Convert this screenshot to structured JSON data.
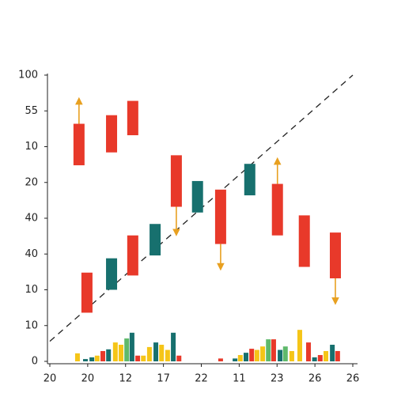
{
  "chart_data": {
    "type": "candlestick",
    "xlim": [
      0,
      8
    ],
    "xticks": [
      {
        "value": 0,
        "label": "20"
      },
      {
        "value": 1,
        "label": "20"
      },
      {
        "value": 2,
        "label": "12"
      },
      {
        "value": 3,
        "label": "17"
      },
      {
        "value": 4,
        "label": "22"
      },
      {
        "value": 5,
        "label": "11"
      },
      {
        "value": 6,
        "label": "23"
      },
      {
        "value": 7,
        "label": "26"
      },
      {
        "value": 8,
        "label": "26"
      }
    ],
    "ylim": [
      0,
      100
    ],
    "yticks": [
      0,
      {
        "value": 12.5,
        "label": "10"
      },
      {
        "value": 25,
        "label": "10"
      },
      {
        "value": 37.5,
        "label": "40"
      },
      {
        "value": 50,
        "label": "40"
      },
      {
        "value": 62.5,
        "label": "20"
      },
      {
        "value": 75,
        "label": "10"
      },
      {
        "value": 87.5,
        "label": "55"
      },
      100
    ],
    "boxes": {
      "x": [
        0.77,
        1.63,
        2.19,
        3.34,
        3.9,
        4.51,
        5.28,
        6.01,
        6.72,
        7.54,
        0.98,
        1.63,
        2.19,
        2.78
      ],
      "high": [
        83,
        86,
        91,
        72,
        63,
        60,
        69,
        62,
        51,
        45,
        31,
        36,
        44,
        48
      ],
      "low": [
        68.5,
        73,
        79,
        54,
        52,
        41,
        58,
        44,
        33,
        29,
        17,
        25,
        30,
        37
      ],
      "color": [
        "#e8392a",
        "#e8392a",
        "#e8392a",
        "#e8392a",
        "#17706e",
        "#e8392a",
        "#17706e",
        "#e8392a",
        "#e8392a",
        "#e8392a",
        "#e8392a",
        "#17706e",
        "#e8392a",
        "#17706e"
      ]
    },
    "arrows": {
      "color": "#e8a020",
      "x": [
        0.77,
        3.34,
        4.51,
        6.01,
        7.54
      ],
      "from": [
        83,
        54,
        41,
        62,
        29
      ],
      "to": [
        91,
        45,
        33,
        70,
        21
      ]
    },
    "trend": {
      "x": [
        0,
        8
      ],
      "y": [
        7,
        100
      ],
      "color": "#222"
    },
    "volume": {
      "x": [
        0.73,
        0.94,
        1.11,
        1.25,
        1.4,
        1.55,
        1.73,
        1.88,
        2.03,
        2.17,
        2.32,
        2.47,
        2.63,
        2.8,
        2.95,
        3.11,
        3.26,
        3.41,
        4.51,
        4.89,
        5.03,
        5.18,
        5.33,
        5.47,
        5.62,
        5.77,
        5.91,
        6.08,
        6.22,
        6.39,
        6.6,
        6.83,
        6.99,
        7.14,
        7.29,
        7.46,
        7.6
      ],
      "values": [
        2.8,
        0.8,
        1.4,
        2,
        3.6,
        4.2,
        6.6,
        5.8,
        8,
        10,
        2,
        2,
        5,
        6.6,
        5.8,
        4,
        10,
        2,
        1,
        1,
        2.2,
        3,
        4.4,
        4,
        5.2,
        7.7,
        7.7,
        4,
        5.2,
        3.6,
        11,
        6.6,
        1.4,
        2.2,
        3.6,
        5.8,
        3.6
      ],
      "color": [
        "#f5c518",
        "#17706e",
        "#17706e",
        "#f5c518",
        "#e8392a",
        "#17706e",
        "#f5c518",
        "#f5c518",
        "#5fb96b",
        "#17706e",
        "#e8392a",
        "#f5c518",
        "#f5c518",
        "#17706e",
        "#f5c518",
        "#f5c518",
        "#17706e",
        "#e8392a",
        "#e8392a",
        "#17706e",
        "#f5c518",
        "#17706e",
        "#e8392a",
        "#f5c518",
        "#f5c518",
        "#5fb96b",
        "#e8392a",
        "#17706e",
        "#5fb96b",
        "#f5c518",
        "#f5c518",
        "#e8392a",
        "#17706e",
        "#e8392a",
        "#f5c518",
        "#17706e",
        "#e8392a"
      ]
    }
  }
}
